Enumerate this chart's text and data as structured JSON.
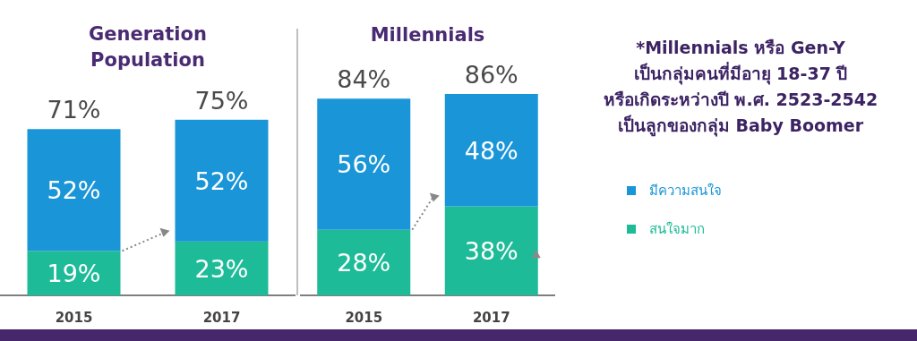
{
  "chart_data": [
    {
      "type": "bar",
      "title": "Generation Population",
      "categories": [
        "2015",
        "2017"
      ],
      "stacked": true,
      "series": [
        {
          "color": "#1dbb97",
          "values": [
            19,
            23
          ],
          "value_labels": [
            "19%",
            "23%"
          ]
        },
        {
          "color": "#1a95d8",
          "values": [
            52,
            52
          ],
          "value_labels": [
            "52%",
            "52%"
          ]
        }
      ],
      "totals": [
        "71%",
        "75%"
      ]
    },
    {
      "type": "bar",
      "title": "Millennials",
      "categories": [
        "2015",
        "2017"
      ],
      "stacked": true,
      "series": [
        {
          "name": "สนใจมาก",
          "color": "#1dbb97",
          "values": [
            28,
            38
          ],
          "value_labels": [
            "28%",
            "38%"
          ]
        },
        {
          "name": "มีความสนใจ",
          "color": "#1a95d8",
          "values": [
            56,
            48
          ],
          "value_labels": [
            "56%",
            "48%"
          ]
        }
      ],
      "totals": [
        "84%",
        "86%"
      ],
      "legend": "right"
    },
    {
      "type": "other",
      "annotations": [
        "*Millennials หรือ Gen-Y",
        "เป็นกลุ่มคนที่มีอายุ 18-37 ปี",
        "หรือเกิดระหว่างปี พ.ศ. 2523-2542",
        "เป็นลูกของกลุ่ม Baby Boomer"
      ]
    }
  ]
}
